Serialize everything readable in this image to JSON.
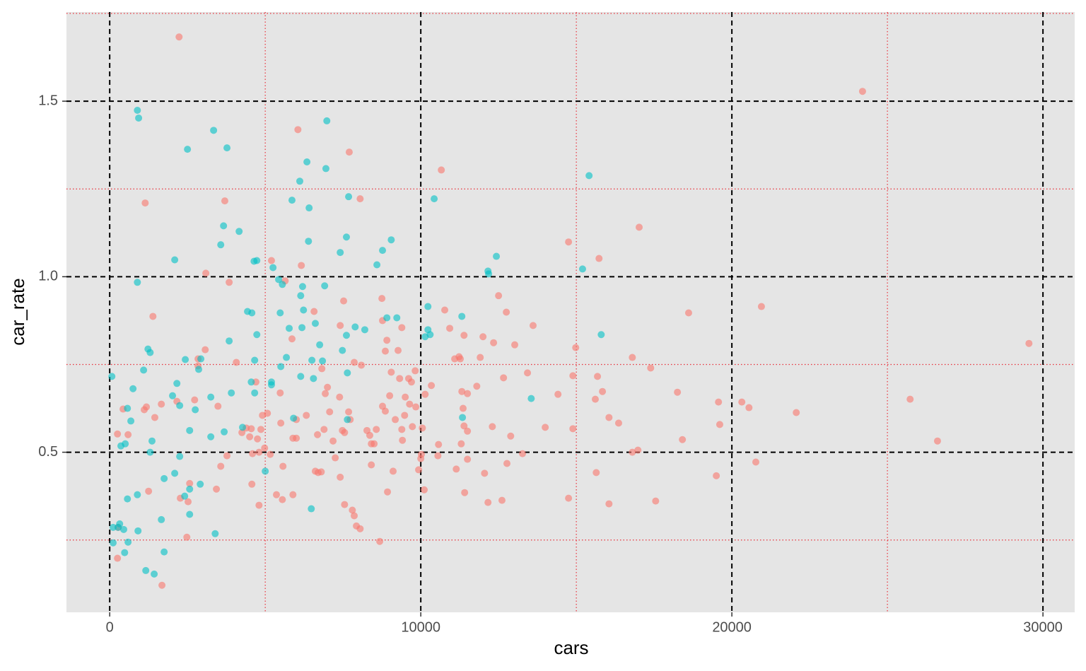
{
  "chart_data": {
    "type": "scatter",
    "xlabel": "cars",
    "ylabel": "car_rate",
    "xlim": [
      -1390,
      31020
    ],
    "ylim": [
      0.044,
      1.754
    ],
    "xticks": [
      0,
      10000,
      20000,
      30000
    ],
    "yticks": [
      0.5,
      {
        "value": 1,
        "label": "1.0"
      },
      1.5
    ],
    "x_minor_ticks": [
      5000,
      15000,
      25000
    ],
    "y_minor_ticks": [
      0.25,
      0.75,
      1.25,
      1.75
    ],
    "grid": true,
    "background": "#e5e5e5",
    "series": [
      {
        "color": "#F8766D",
        "x": [
          2230,
          24200,
          6050,
          7700,
          10660,
          3700,
          1140,
          8050,
          17020,
          14750,
          15730,
          5200,
          6160,
          3090,
          3840,
          5640,
          8750,
          7520,
          12500,
          20950,
          18610,
          6570,
          10770,
          12750,
          1390,
          8770,
          9390,
          7410,
          10930,
          13610,
          11390,
          12000,
          5860,
          8910,
          12340,
          13020,
          29550,
          3070,
          8860,
          9270,
          14980,
          11910,
          11230,
          11090,
          11270,
          16800,
          4070,
          7860,
          8090,
          17390,
          2840,
          2840,
          6820,
          9050,
          9820,
          13430,
          9320,
          9610,
          12660,
          14890,
          15680,
          9700,
          10340,
          7000,
          11800,
          4700,
          5480,
          6930,
          9500,
          10140,
          11320,
          11500,
          14410,
          15840,
          18250,
          9000,
          7390,
          15610,
          2730,
          2160,
          19570,
          20320,
          20550,
          25730,
          1660,
          9640,
          9840,
          11360,
          8770,
          8860,
          3480,
          430,
          1180,
          1110,
          7070,
          5070,
          4910,
          7680,
          6320,
          9480,
          22070,
          1450,
          16050,
          5500,
          6000,
          7730,
          16360,
          19610,
          9180,
          9730,
          10050,
          9390,
          8570,
          8270,
          7480,
          7550,
          6890,
          4390,
          4550,
          4860,
          4250,
          11390,
          11500,
          12300,
          14000,
          14890,
          590,
          250,
          4500,
          4750,
          5890,
          6000,
          6680,
          7180,
          8360,
          8410,
          8500,
          9410,
          10570,
          11300,
          12890,
          18410,
          26610,
          4980,
          4800,
          4590,
          5160,
          3770,
          10020,
          10000,
          10550,
          11500,
          7250,
          13270,
          16800,
          16980,
          20770,
          3570,
          5570,
          8410,
          12770,
          9930,
          9110,
          6610,
          6700,
          6800,
          11140,
          12050,
          15640,
          19500,
          7410,
          2570,
          4570,
          1250,
          8930,
          10110,
          11410,
          3430,
          5360,
          5890,
          2270,
          2520,
          5550,
          4800,
          7550,
          12160,
          12610,
          14750,
          16050,
          17550,
          7800,
          7860,
          7930,
          8050,
          270,
          2480,
          8680,
          250,
          1680
        ],
        "values": [
          1.683,
          1.528,
          1.419,
          1.355,
          1.304,
          1.216,
          1.21,
          1.222,
          1.141,
          1.099,
          1.052,
          1.046,
          1.032,
          1.01,
          0.984,
          0.988,
          0.938,
          0.931,
          0.946,
          0.915,
          0.897,
          0.901,
          0.905,
          0.899,
          0.887,
          0.875,
          0.855,
          0.861,
          0.853,
          0.861,
          0.833,
          0.829,
          0.823,
          0.819,
          0.812,
          0.806,
          0.81,
          0.792,
          0.788,
          0.79,
          0.798,
          0.77,
          0.772,
          0.766,
          0.766,
          0.77,
          0.756,
          0.756,
          0.748,
          0.74,
          0.766,
          0.746,
          0.738,
          0.728,
          0.732,
          0.726,
          0.71,
          0.71,
          0.712,
          0.718,
          0.716,
          0.7,
          0.69,
          0.685,
          0.688,
          0.7,
          0.669,
          0.667,
          0.657,
          0.665,
          0.673,
          0.667,
          0.665,
          0.673,
          0.671,
          0.661,
          0.657,
          0.651,
          0.649,
          0.645,
          0.643,
          0.643,
          0.627,
          0.651,
          0.637,
          0.637,
          0.629,
          0.625,
          0.631,
          0.617,
          0.631,
          0.623,
          0.629,
          0.621,
          0.615,
          0.611,
          0.605,
          0.615,
          0.605,
          0.605,
          0.613,
          0.599,
          0.599,
          0.583,
          0.593,
          0.593,
          0.583,
          0.579,
          0.593,
          0.573,
          0.569,
          0.565,
          0.565,
          0.562,
          0.562,
          0.556,
          0.565,
          0.569,
          0.567,
          0.565,
          0.556,
          0.575,
          0.56,
          0.573,
          0.571,
          0.567,
          0.55,
          0.552,
          0.544,
          0.538,
          0.54,
          0.54,
          0.55,
          0.532,
          0.548,
          0.524,
          0.524,
          0.534,
          0.522,
          0.524,
          0.546,
          0.536,
          0.532,
          0.512,
          0.5,
          0.496,
          0.494,
          0.49,
          0.494,
          0.482,
          0.49,
          0.48,
          0.484,
          0.496,
          0.5,
          0.506,
          0.472,
          0.46,
          0.46,
          0.464,
          0.468,
          0.45,
          0.446,
          0.446,
          0.442,
          0.444,
          0.452,
          0.44,
          0.442,
          0.433,
          0.429,
          0.411,
          0.409,
          0.389,
          0.387,
          0.393,
          0.385,
          0.395,
          0.379,
          0.379,
          0.369,
          0.359,
          0.365,
          0.349,
          0.351,
          0.357,
          0.363,
          0.369,
          0.353,
          0.361,
          0.335,
          0.319,
          0.29,
          0.282,
          0.286,
          0.258,
          0.246,
          0.198,
          0.121
        ]
      },
      {
        "color": "#00BFC4",
        "x": [
          70,
          890,
          930,
          2500,
          3340,
          3770,
          2090,
          890,
          3660,
          4160,
          3570,
          6340,
          6110,
          6980,
          6950,
          5860,
          6410,
          7680,
          7610,
          7410,
          6390,
          9050,
          8770,
          8590,
          10430,
          15410,
          15200,
          12430,
          12160,
          12180,
          4730,
          4640,
          5250,
          5430,
          5550,
          6200,
          6910,
          6140,
          5480,
          6230,
          4430,
          4570,
          5770,
          6180,
          6610,
          4730,
          3840,
          6750,
          7480,
          7610,
          7890,
          8200,
          8910,
          9230,
          10230,
          10230,
          10140,
          10300,
          11320,
          15800,
          1230,
          1300,
          1090,
          2430,
          2930,
          2860,
          4660,
          5500,
          5680,
          6500,
          6840,
          7640,
          6140,
          6550,
          4550,
          5200,
          5200,
          2160,
          750,
          2020,
          3250,
          3910,
          4660,
          2250,
          2750,
          570,
          680,
          5910,
          7640,
          11340,
          13550,
          4270,
          3680,
          3250,
          2570,
          1360,
          500,
          360,
          1300,
          2250,
          5000,
          2090,
          1750,
          2910,
          2570,
          890,
          2410,
          570,
          2570,
          1660,
          6480,
          3390,
          910,
          320,
          110,
          270,
          450,
          590,
          110,
          480,
          1750,
          1160,
          1430
        ],
        "values": [
          0.716,
          1.474,
          1.452,
          1.363,
          1.417,
          1.367,
          1.048,
          0.984,
          1.145,
          1.129,
          1.091,
          1.327,
          1.272,
          1.444,
          1.308,
          1.218,
          1.196,
          1.228,
          1.113,
          1.069,
          1.101,
          1.105,
          1.075,
          1.034,
          1.222,
          1.288,
          1.022,
          1.058,
          1.016,
          1.008,
          1.046,
          1.044,
          1.026,
          0.992,
          0.978,
          0.972,
          0.974,
          0.946,
          0.897,
          0.905,
          0.901,
          0.897,
          0.853,
          0.855,
          0.867,
          0.835,
          0.817,
          0.806,
          0.79,
          0.833,
          0.857,
          0.849,
          0.883,
          0.883,
          0.915,
          0.849,
          0.829,
          0.835,
          0.887,
          0.835,
          0.794,
          0.784,
          0.734,
          0.764,
          0.766,
          0.736,
          0.762,
          0.744,
          0.77,
          0.762,
          0.76,
          0.726,
          0.716,
          0.71,
          0.7,
          0.7,
          0.692,
          0.696,
          0.681,
          0.661,
          0.657,
          0.669,
          0.669,
          0.633,
          0.621,
          0.625,
          0.589,
          0.597,
          0.593,
          0.599,
          0.653,
          0.571,
          0.558,
          0.544,
          0.562,
          0.532,
          0.524,
          0.518,
          0.5,
          0.488,
          0.446,
          0.44,
          0.425,
          0.409,
          0.395,
          0.379,
          0.375,
          0.367,
          0.323,
          0.308,
          0.339,
          0.268,
          0.276,
          0.296,
          0.286,
          0.286,
          0.28,
          0.244,
          0.242,
          0.214,
          0.216,
          0.163,
          0.153
        ]
      }
    ]
  }
}
